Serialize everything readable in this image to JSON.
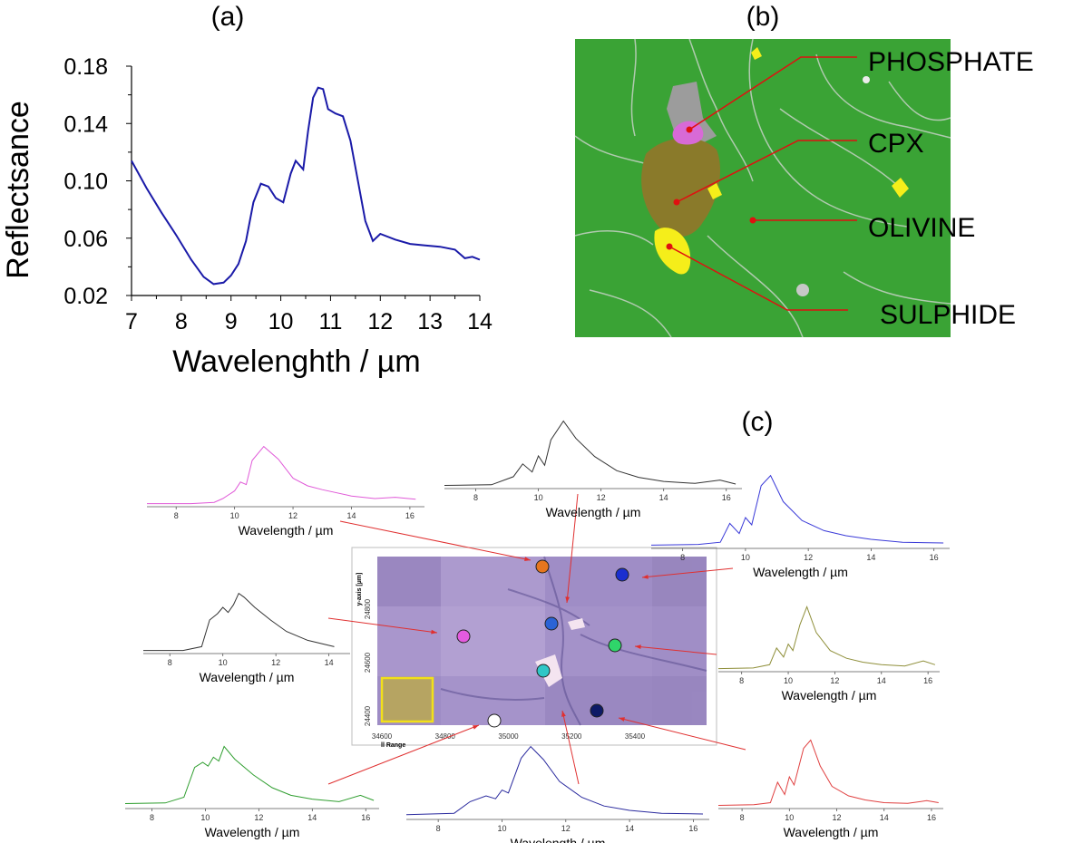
{
  "panel_labels": {
    "a": "(a)",
    "b": "(b)",
    "c": "(c)"
  },
  "panel_b": {
    "labels": [
      "PHOSPHATE",
      "CPX",
      "OLIVINE",
      "SULPHIDE"
    ],
    "colors": {
      "olivine": "#3aa335",
      "cpx": "#8a7a2a",
      "phosphate": "#d86ad6",
      "sulphide": "#f5ee1a",
      "leader": "#e01010"
    }
  },
  "map": {
    "y_axis_title": "y-axis [µm]",
    "x_axis_title": "ll Range",
    "x_ticks": [
      "34600",
      "34800",
      "35000",
      "35200",
      "35400"
    ],
    "y_ticks": [
      "24400",
      "24600",
      "24800"
    ],
    "spot_colors": [
      "#e6761e",
      "#1b2fd0",
      "#2b63d6",
      "#e55be0",
      "#2fd66a",
      "#2fc7c7",
      "#0d1a66",
      "#ffffff"
    ]
  },
  "chart_data": [
    {
      "type": "line",
      "title": "",
      "xlabel": "Wavelenghth / µm",
      "ylabel": "Reflectsance",
      "xlim": [
        7,
        14
      ],
      "ylim": [
        0.02,
        0.18
      ],
      "x_ticks": [
        "7",
        "8",
        "9",
        "10",
        "11",
        "12",
        "13",
        "14"
      ],
      "y_ticks": [
        "0.02",
        "0.06",
        "0.10",
        "0.14",
        "0.18"
      ],
      "color": "#1a1aa8",
      "x": [
        7.0,
        7.3,
        7.6,
        7.9,
        8.2,
        8.45,
        8.65,
        8.85,
        9.0,
        9.15,
        9.3,
        9.45,
        9.6,
        9.75,
        9.9,
        10.05,
        10.2,
        10.3,
        10.45,
        10.55,
        10.65,
        10.75,
        10.85,
        10.95,
        11.1,
        11.25,
        11.4,
        11.55,
        11.7,
        11.85,
        12.0,
        12.3,
        12.6,
        12.9,
        13.2,
        13.5,
        13.7,
        13.85,
        14.0
      ],
      "y": [
        0.114,
        0.095,
        0.078,
        0.062,
        0.045,
        0.033,
        0.028,
        0.029,
        0.034,
        0.042,
        0.058,
        0.085,
        0.098,
        0.096,
        0.088,
        0.085,
        0.105,
        0.114,
        0.108,
        0.135,
        0.158,
        0.165,
        0.164,
        0.15,
        0.147,
        0.145,
        0.128,
        0.1,
        0.072,
        0.058,
        0.063,
        0.059,
        0.056,
        0.055,
        0.054,
        0.052,
        0.046,
        0.047,
        0.045
      ]
    },
    {
      "type": "line",
      "xlabel": "Wavelength / µm",
      "color": "#e05ad8",
      "xlim": [
        7,
        16.5
      ],
      "x_ticks": [
        "8",
        "10",
        "12",
        "14",
        "16"
      ],
      "x": [
        7,
        8.5,
        9.3,
        9.6,
        10.0,
        10.2,
        10.4,
        10.6,
        11.0,
        11.5,
        12.0,
        12.5,
        13.0,
        14.0,
        14.8,
        15.5,
        16.2
      ],
      "y": [
        0.02,
        0.02,
        0.04,
        0.1,
        0.22,
        0.36,
        0.32,
        0.7,
        0.92,
        0.72,
        0.42,
        0.3,
        0.24,
        0.14,
        0.1,
        0.12,
        0.09
      ]
    },
    {
      "type": "line",
      "xlabel": "Wavelength / µm",
      "color": "#333333",
      "xlim": [
        7,
        16.5
      ],
      "x_ticks": [
        "8",
        "10",
        "12",
        "14",
        "16"
      ],
      "x": [
        7,
        8.5,
        9.2,
        9.5,
        9.8,
        10.0,
        10.2,
        10.4,
        10.8,
        11.2,
        11.8,
        12.5,
        13.2,
        14.0,
        15.0,
        15.8,
        16.3
      ],
      "y": [
        0.02,
        0.03,
        0.15,
        0.34,
        0.22,
        0.46,
        0.32,
        0.7,
        0.98,
        0.72,
        0.45,
        0.24,
        0.14,
        0.08,
        0.05,
        0.1,
        0.04
      ]
    },
    {
      "type": "line",
      "xlabel": "Wavelength / µm",
      "color": "#3a3ad8",
      "xlim": [
        7,
        16.5
      ],
      "x_ticks": [
        "8",
        "10",
        "12",
        "14",
        "16"
      ],
      "x": [
        7,
        8.5,
        9.2,
        9.5,
        9.8,
        10.0,
        10.2,
        10.5,
        10.8,
        11.2,
        11.8,
        12.5,
        13.2,
        14.0,
        15.0,
        16.3
      ],
      "y": [
        0.02,
        0.03,
        0.06,
        0.32,
        0.18,
        0.4,
        0.3,
        0.84,
        0.98,
        0.62,
        0.36,
        0.22,
        0.15,
        0.1,
        0.06,
        0.05
      ]
    },
    {
      "type": "line",
      "xlabel": "Wavelength / µm",
      "color": "#333333",
      "xlim": [
        7,
        14.8
      ],
      "x_ticks": [
        "8",
        "10",
        "12",
        "14"
      ],
      "x": [
        7,
        8.5,
        9.2,
        9.5,
        9.8,
        10.0,
        10.2,
        10.4,
        10.6,
        10.8,
        11.2,
        11.8,
        12.4,
        13.2,
        14.2
      ],
      "y": [
        0.02,
        0.02,
        0.08,
        0.5,
        0.6,
        0.7,
        0.62,
        0.74,
        0.92,
        0.86,
        0.7,
        0.5,
        0.32,
        0.18,
        0.08
      ]
    },
    {
      "type": "line",
      "xlabel": "Wavelength / µm",
      "color": "#8f8f3a",
      "xlim": [
        7,
        16.5
      ],
      "x_ticks": [
        "8",
        "10",
        "12",
        "14",
        "16"
      ],
      "x": [
        7,
        8.5,
        9.2,
        9.5,
        9.8,
        10.0,
        10.2,
        10.5,
        10.8,
        11.2,
        11.8,
        12.5,
        13.2,
        14.0,
        15.0,
        15.8,
        16.3
      ],
      "y": [
        0.02,
        0.03,
        0.08,
        0.34,
        0.2,
        0.4,
        0.3,
        0.7,
        0.98,
        0.58,
        0.3,
        0.18,
        0.12,
        0.08,
        0.06,
        0.14,
        0.08
      ]
    },
    {
      "type": "line",
      "xlabel": "Wavelength / µm",
      "color": "#2f9e2f",
      "xlim": [
        7,
        16.5
      ],
      "x_ticks": [
        "8",
        "10",
        "12",
        "14",
        "16"
      ],
      "x": [
        7,
        8.5,
        9.2,
        9.6,
        9.9,
        10.1,
        10.3,
        10.5,
        10.7,
        11.1,
        11.8,
        12.5,
        13.2,
        14.0,
        15.0,
        15.8,
        16.3
      ],
      "y": [
        0.05,
        0.06,
        0.15,
        0.62,
        0.7,
        0.64,
        0.78,
        0.72,
        0.95,
        0.75,
        0.5,
        0.3,
        0.18,
        0.12,
        0.08,
        0.18,
        0.1
      ]
    },
    {
      "type": "line",
      "xlabel": "Wavelength / µm",
      "color": "#2a2a9e",
      "xlim": [
        7,
        16.5
      ],
      "x_ticks": [
        "8",
        "10",
        "12",
        "14",
        "16"
      ],
      "x": [
        7,
        8.5,
        9.0,
        9.5,
        9.8,
        10.0,
        10.2,
        10.6,
        10.9,
        11.3,
        11.8,
        12.5,
        13.2,
        14.0,
        15.0,
        16.3
      ],
      "y": [
        0.04,
        0.06,
        0.22,
        0.3,
        0.26,
        0.38,
        0.34,
        0.82,
        0.98,
        0.8,
        0.5,
        0.28,
        0.16,
        0.1,
        0.06,
        0.05
      ]
    },
    {
      "type": "line",
      "xlabel": "Wavelength / µm",
      "color": "#e04040",
      "xlim": [
        7,
        16.5
      ],
      "x_ticks": [
        "8",
        "10",
        "12",
        "14",
        "16"
      ],
      "x": [
        7,
        8.5,
        9.2,
        9.5,
        9.8,
        10.0,
        10.2,
        10.6,
        10.9,
        11.3,
        11.8,
        12.5,
        13.2,
        14.0,
        15.0,
        15.8,
        16.3
      ],
      "y": [
        0.02,
        0.03,
        0.06,
        0.36,
        0.18,
        0.44,
        0.32,
        0.86,
        0.98,
        0.6,
        0.3,
        0.16,
        0.1,
        0.06,
        0.05,
        0.09,
        0.06
      ]
    }
  ]
}
